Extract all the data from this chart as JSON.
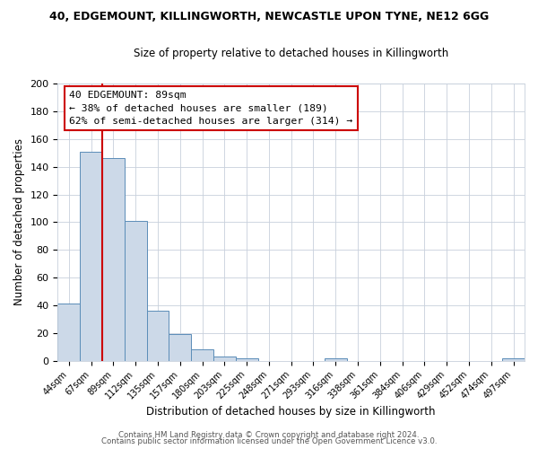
{
  "title": "40, EDGEMOUNT, KILLINGWORTH, NEWCASTLE UPON TYNE, NE12 6GG",
  "subtitle": "Size of property relative to detached houses in Killingworth",
  "xlabel": "Distribution of detached houses by size in Killingworth",
  "ylabel": "Number of detached properties",
  "bar_labels": [
    "44sqm",
    "67sqm",
    "89sqm",
    "112sqm",
    "135sqm",
    "157sqm",
    "180sqm",
    "203sqm",
    "225sqm",
    "248sqm",
    "271sqm",
    "293sqm",
    "316sqm",
    "338sqm",
    "361sqm",
    "384sqm",
    "406sqm",
    "429sqm",
    "452sqm",
    "474sqm",
    "497sqm"
  ],
  "bar_values": [
    41,
    151,
    146,
    101,
    36,
    19,
    8,
    3,
    2,
    0,
    0,
    0,
    2,
    0,
    0,
    0,
    0,
    0,
    0,
    0,
    2
  ],
  "bar_color": "#ccd9e8",
  "bar_edge_color": "#5b8db8",
  "vline_color": "#cc0000",
  "vline_x": 1.5,
  "ylim": [
    0,
    200
  ],
  "yticks": [
    0,
    20,
    40,
    60,
    80,
    100,
    120,
    140,
    160,
    180,
    200
  ],
  "annotation_title": "40 EDGEMOUNT: 89sqm",
  "annotation_line1": "← 38% of detached houses are smaller (189)",
  "annotation_line2": "62% of semi-detached houses are larger (314) →",
  "annotation_box_color": "#ffffff",
  "annotation_box_edge": "#cc0000",
  "footer1": "Contains HM Land Registry data © Crown copyright and database right 2024.",
  "footer2": "Contains public sector information licensed under the Open Government Licence v3.0.",
  "bg_color": "#ffffff",
  "grid_color": "#c8d0dc"
}
